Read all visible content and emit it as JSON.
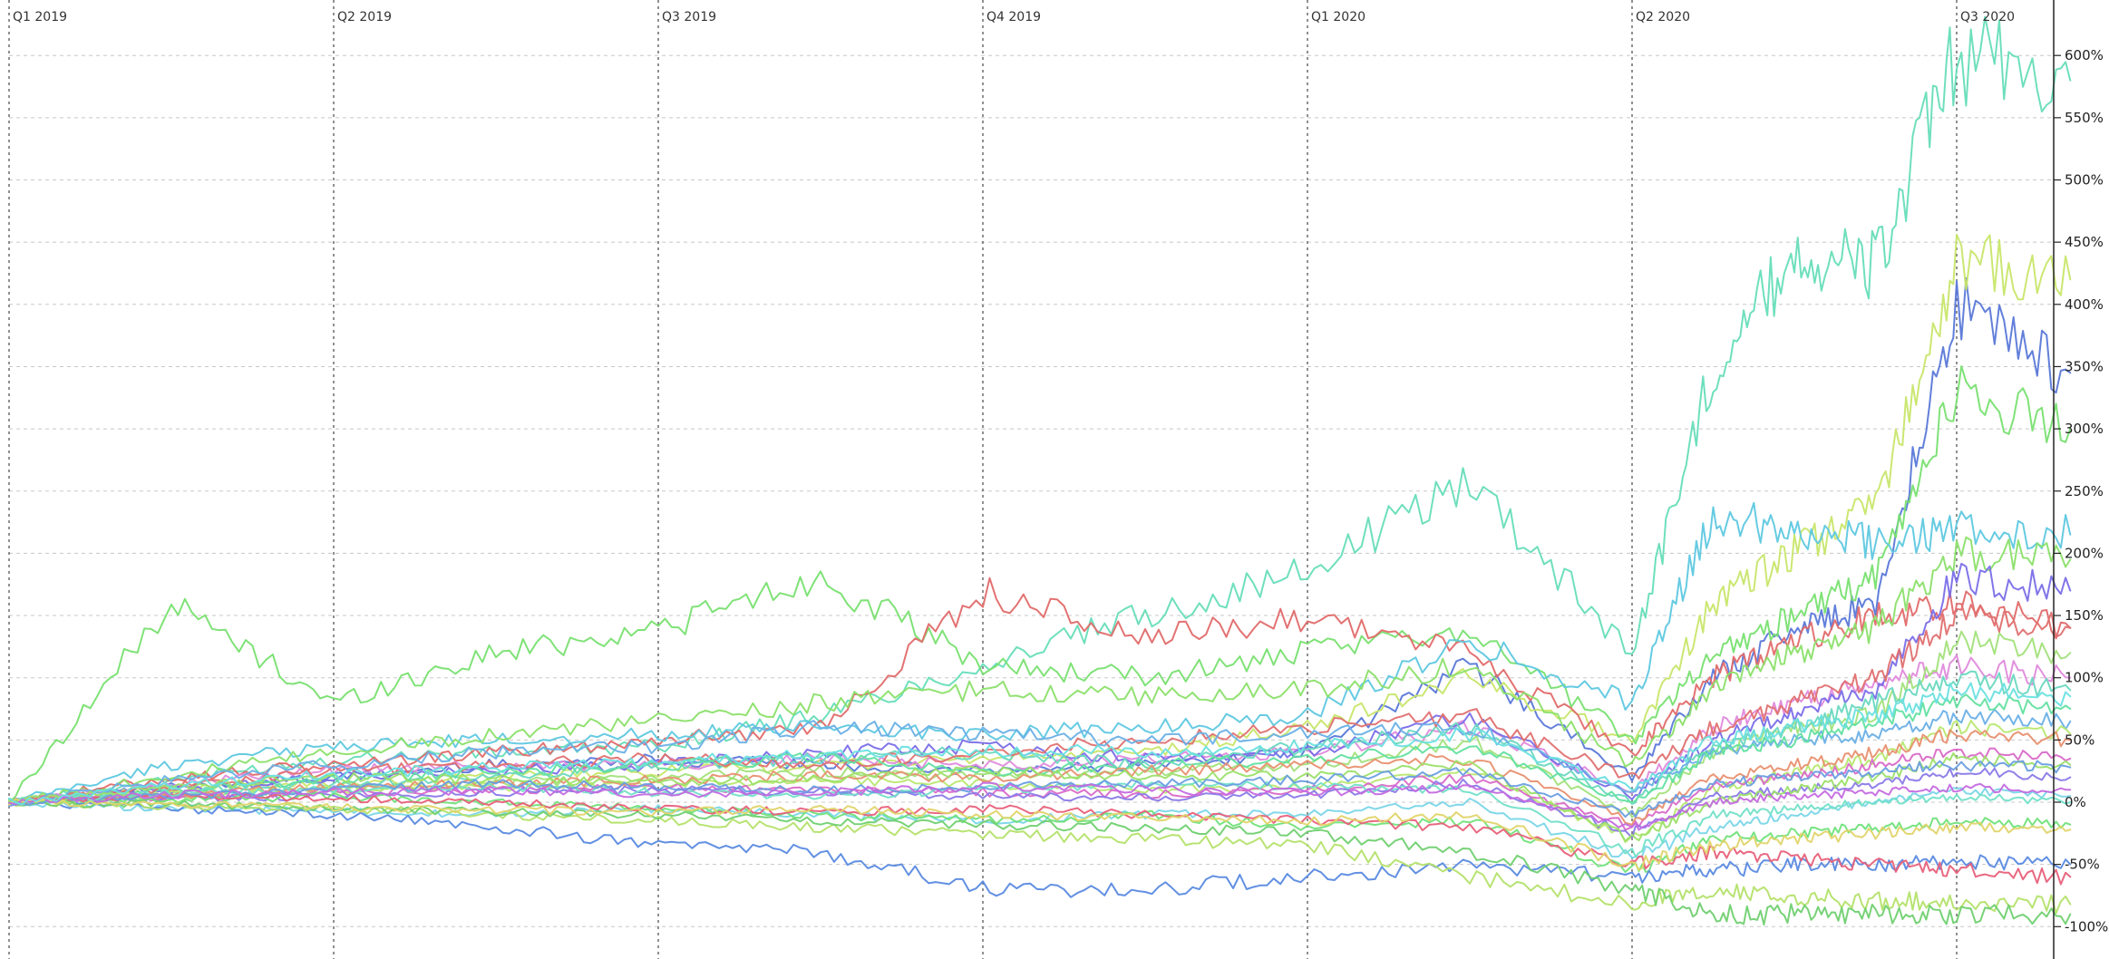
{
  "chart_data": {
    "type": "line",
    "title": "",
    "xlabel": "",
    "ylabel": "",
    "x_unit": "quarter",
    "x_range": [
      "Q1 2019",
      "Q3 2020 (partial)"
    ],
    "quarters": [
      "Q1 2019",
      "Q2 2019",
      "Q3 2019",
      "Q4 2019",
      "Q1 2020",
      "Q2 2020",
      "Q3 2020"
    ],
    "ylim": [
      -110,
      620
    ],
    "yticks": [
      -100,
      -50,
      0,
      50,
      100,
      150,
      200,
      250,
      300,
      350,
      400,
      450,
      500,
      550,
      600
    ],
    "ytick_labels": [
      "-100%",
      "-50%",
      "0%",
      "50%",
      "100%",
      "150%",
      "200%",
      "250%",
      "300%",
      "350%",
      "400%",
      "450%",
      "500%",
      "550%",
      "600%"
    ],
    "y_axis_position": "right",
    "grid": true,
    "legend": "none",
    "x_sample_quarters": [
      0,
      0.5,
      1,
      1.5,
      2,
      2.5,
      3,
      3.5,
      4,
      4.5,
      5,
      5.25,
      5.5,
      5.75,
      6,
      6.35
    ],
    "series": [
      {
        "color": "#66ddb8",
        "values": [
          0,
          18,
          35,
          40,
          45,
          70,
          110,
          150,
          185,
          260,
          120,
          350,
          440,
          430,
          600,
          580
        ]
      },
      {
        "color": "#5a78d8",
        "values": [
          0,
          12,
          20,
          30,
          35,
          30,
          25,
          30,
          40,
          110,
          20,
          100,
          140,
          160,
          400,
          345
        ]
      },
      {
        "color": "#c8e66a",
        "values": [
          0,
          10,
          15,
          20,
          25,
          30,
          35,
          40,
          60,
          100,
          50,
          160,
          200,
          240,
          430,
          420
        ]
      },
      {
        "color": "#78e070",
        "values": [
          0,
          160,
          80,
          120,
          140,
          180,
          110,
          100,
          120,
          140,
          50,
          120,
          150,
          180,
          330,
          300
        ]
      },
      {
        "color": "#e26a6a",
        "values": [
          0,
          20,
          30,
          40,
          50,
          60,
          170,
          130,
          150,
          120,
          40,
          100,
          130,
          150,
          160,
          140
        ]
      },
      {
        "color": "#5ec8e0",
        "values": [
          0,
          30,
          45,
          50,
          55,
          60,
          55,
          60,
          70,
          130,
          80,
          230,
          220,
          210,
          220,
          215
        ]
      },
      {
        "color": "#8be06a",
        "values": [
          0,
          22,
          40,
          55,
          65,
          80,
          90,
          85,
          90,
          110,
          30,
          90,
          120,
          140,
          200,
          195
        ]
      },
      {
        "color": "#e08adc",
        "values": [
          0,
          15,
          25,
          30,
          30,
          35,
          30,
          35,
          40,
          60,
          10,
          60,
          80,
          95,
          110,
          100
        ]
      },
      {
        "color": "#7a6ee8",
        "values": [
          0,
          10,
          20,
          25,
          30,
          40,
          45,
          35,
          40,
          70,
          5,
          50,
          70,
          90,
          180,
          170
        ]
      },
      {
        "color": "#a2e27a",
        "values": [
          0,
          5,
          10,
          15,
          20,
          25,
          20,
          25,
          30,
          50,
          -10,
          40,
          60,
          70,
          130,
          120
        ]
      },
      {
        "color": "#6ad8c0",
        "values": [
          0,
          8,
          15,
          20,
          28,
          35,
          40,
          30,
          45,
          60,
          0,
          45,
          60,
          80,
          100,
          90
        ]
      },
      {
        "color": "#e07070",
        "values": [
          0,
          12,
          25,
          30,
          35,
          30,
          40,
          50,
          60,
          70,
          20,
          60,
          80,
          100,
          150,
          140
        ]
      },
      {
        "color": "#6ab0e6",
        "values": [
          0,
          18,
          30,
          40,
          45,
          60,
          55,
          50,
          55,
          60,
          10,
          40,
          50,
          55,
          70,
          65
        ]
      },
      {
        "color": "#b8e870",
        "values": [
          0,
          6,
          10,
          12,
          15,
          18,
          15,
          10,
          12,
          25,
          -30,
          10,
          25,
          35,
          60,
          55
        ]
      },
      {
        "color": "#d96ac8",
        "values": [
          0,
          4,
          8,
          10,
          12,
          10,
          8,
          6,
          10,
          20,
          -20,
          15,
          20,
          30,
          40,
          35
        ]
      },
      {
        "color": "#62e0a0",
        "values": [
          0,
          10,
          18,
          25,
          30,
          35,
          25,
          30,
          35,
          45,
          0,
          40,
          50,
          65,
          80,
          75
        ]
      },
      {
        "color": "#8a7ae8",
        "values": [
          0,
          3,
          5,
          8,
          10,
          8,
          5,
          4,
          6,
          15,
          -25,
          5,
          10,
          15,
          25,
          20
        ]
      },
      {
        "color": "#7ad6e8",
        "values": [
          0,
          -5,
          -8,
          -10,
          -5,
          -10,
          -15,
          -10,
          -8,
          0,
          -45,
          -20,
          -10,
          0,
          10,
          5
        ]
      },
      {
        "color": "#e89070",
        "values": [
          0,
          6,
          12,
          15,
          18,
          22,
          20,
          25,
          30,
          35,
          -15,
          20,
          30,
          40,
          55,
          50
        ]
      },
      {
        "color": "#70e27a",
        "values": [
          0,
          2,
          5,
          0,
          -5,
          -10,
          -15,
          -10,
          -20,
          -15,
          -55,
          -30,
          -25,
          -20,
          -15,
          -18
        ]
      },
      {
        "color": "#5a8ae0",
        "values": [
          0,
          -5,
          -10,
          -20,
          -35,
          -40,
          -70,
          -70,
          -60,
          -50,
          -60,
          -55,
          -50,
          -50,
          -48,
          -50
        ]
      },
      {
        "color": "#b4e26a",
        "values": [
          0,
          -3,
          -5,
          -10,
          -15,
          -20,
          -25,
          -30,
          -35,
          -60,
          -80,
          -70,
          -75,
          -80,
          -80,
          -82
        ]
      },
      {
        "color": "#70d070",
        "values": [
          0,
          -2,
          -5,
          -8,
          -10,
          -15,
          -18,
          -20,
          -25,
          -40,
          -70,
          -90,
          -90,
          -90,
          -90,
          -90
        ]
      },
      {
        "color": "#e8607a",
        "values": [
          0,
          5,
          3,
          0,
          -5,
          -8,
          -5,
          -10,
          -15,
          -20,
          -50,
          -40,
          -45,
          -50,
          -55,
          -60
        ]
      },
      {
        "color": "#72e0c8",
        "values": [
          0,
          8,
          10,
          12,
          8,
          5,
          10,
          15,
          12,
          10,
          -40,
          -10,
          -5,
          0,
          5,
          0
        ]
      },
      {
        "color": "#9ce06a",
        "values": [
          0,
          12,
          20,
          18,
          15,
          20,
          25,
          22,
          20,
          30,
          -30,
          0,
          10,
          20,
          35,
          30
        ]
      },
      {
        "color": "#6a9ee0",
        "values": [
          0,
          5,
          10,
          15,
          12,
          10,
          12,
          15,
          18,
          25,
          -10,
          15,
          20,
          25,
          30,
          28
        ]
      },
      {
        "color": "#e0d46a",
        "values": [
          0,
          -2,
          -4,
          -6,
          -8,
          -5,
          -10,
          -12,
          -15,
          -10,
          -50,
          -35,
          -30,
          -25,
          -20,
          -22
        ]
      },
      {
        "color": "#c46ae0",
        "values": [
          0,
          6,
          8,
          10,
          5,
          8,
          12,
          10,
          8,
          12,
          -20,
          0,
          5,
          8,
          12,
          10
        ]
      },
      {
        "color": "#6ae0e0",
        "values": [
          0,
          14,
          22,
          28,
          32,
          38,
          42,
          40,
          45,
          55,
          10,
          50,
          60,
          70,
          90,
          85
        ]
      }
    ]
  }
}
